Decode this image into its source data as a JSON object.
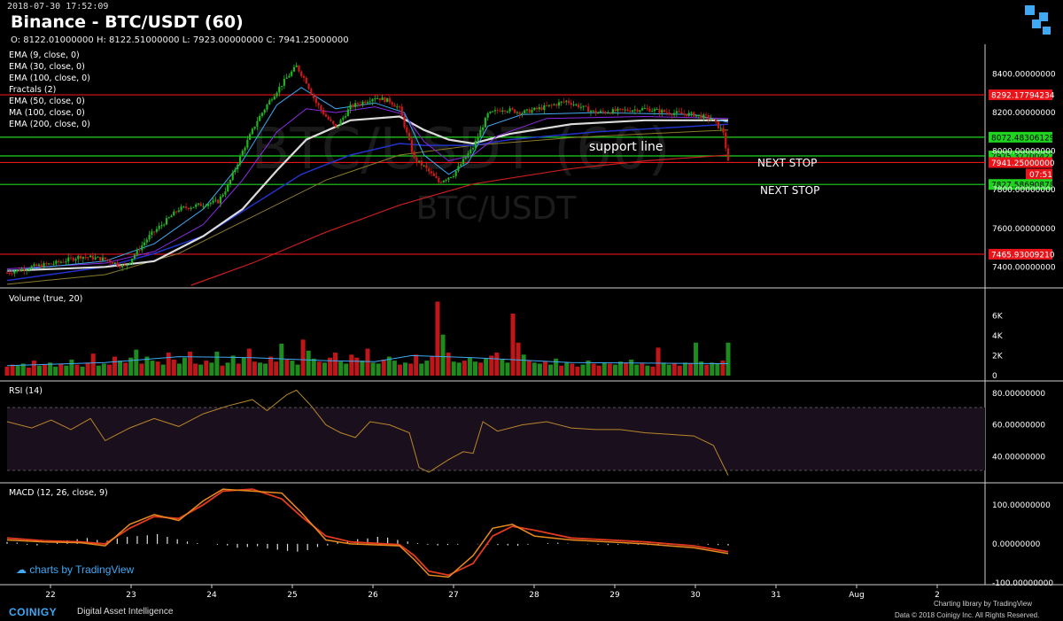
{
  "header": {
    "timestamp": "2018-07-30 17:52:09",
    "title": "Binance - BTC/USDT (60)",
    "ohlc": "O: 8122.01000000 H: 8122.51000000 L: 7923.00000000 C: 7941.25000000",
    "watermark_symbol": "BTC/USDT (60)",
    "watermark_pair": "BTC/USDT"
  },
  "studies": [
    "EMA (9, close, 0)",
    "EMA (30, close, 0)",
    "EMA (100, close, 0)",
    "Fractals (2)",
    "EMA (50, close, 0)",
    "MA (100, close, 0)",
    "EMA (200, close, 0)"
  ],
  "annotations": {
    "support": "support line",
    "next_stop_1": "NEXT STOP",
    "next_stop_2": "NEXT STOP"
  },
  "panes": {
    "volume": "Volume (true, 20)",
    "rsi": "RSI (14)",
    "macd": "MACD (12, 26, close, 9)"
  },
  "footer": {
    "tv_credit": "charts by TradingView",
    "brand": "COINIGY",
    "brand_sub": "Digital Asset Intelligence",
    "lib": "Charting library by  TradingView",
    "data": "Data © 2018  Coinigy Inc. All Rights Reserved."
  },
  "colors": {
    "up": "#1e9b1e",
    "down": "#c0161a",
    "red_line": "#e8141a",
    "green_line": "#1fd41f",
    "accent": "#3fa9f5"
  },
  "chart_data": [
    {
      "type": "candlestick",
      "pane": "price",
      "x_ticks": [
        "22",
        "23",
        "24",
        "25",
        "26",
        "27",
        "28",
        "29",
        "30",
        "31",
        "Aug",
        "2"
      ],
      "y_ticks": [
        "8400.00000000",
        "8200.00000000",
        "8000.00000000",
        "7800.00000000",
        "7600.00000000",
        "7400.00000000"
      ],
      "ylim": [
        7305,
        8545
      ],
      "close_path": [
        [
          0,
          7370
        ],
        [
          10,
          7400
        ],
        [
          20,
          7420
        ],
        [
          30,
          7455
        ],
        [
          40,
          7440
        ],
        [
          48,
          7400
        ],
        [
          58,
          7560
        ],
        [
          70,
          7700
        ],
        [
          78,
          7720
        ],
        [
          86,
          7740
        ],
        [
          90,
          7820
        ],
        [
          96,
          8000
        ],
        [
          102,
          8160
        ],
        [
          108,
          8280
        ],
        [
          114,
          8380
        ],
        [
          118,
          8440
        ],
        [
          122,
          8360
        ],
        [
          126,
          8250
        ],
        [
          130,
          8180
        ],
        [
          134,
          8120
        ],
        [
          140,
          8230
        ],
        [
          146,
          8260
        ],
        [
          150,
          8280
        ],
        [
          156,
          8260
        ],
        [
          160,
          8220
        ],
        [
          166,
          7960
        ],
        [
          170,
          7920
        ],
        [
          176,
          7840
        ],
        [
          182,
          7880
        ],
        [
          186,
          7950
        ],
        [
          190,
          8020
        ],
        [
          196,
          8190
        ],
        [
          202,
          8220
        ],
        [
          210,
          8200
        ],
        [
          220,
          8230
        ],
        [
          228,
          8260
        ],
        [
          240,
          8200
        ],
        [
          250,
          8210
        ],
        [
          260,
          8220
        ],
        [
          270,
          8200
        ],
        [
          280,
          8190
        ],
        [
          287,
          8170
        ],
        [
          292,
          8100
        ],
        [
          294,
          7941
        ]
      ],
      "ema_fast": [
        [
          0,
          7380
        ],
        [
          40,
          7430
        ],
        [
          60,
          7520
        ],
        [
          80,
          7700
        ],
        [
          96,
          7950
        ],
        [
          110,
          8240
        ],
        [
          120,
          8330
        ],
        [
          134,
          8220
        ],
        [
          150,
          8250
        ],
        [
          162,
          8200
        ],
        [
          170,
          7980
        ],
        [
          180,
          7880
        ],
        [
          188,
          7940
        ],
        [
          196,
          8130
        ],
        [
          210,
          8190
        ],
        [
          240,
          8200
        ],
        [
          280,
          8190
        ],
        [
          294,
          8150
        ]
      ],
      "ema_mid": [
        [
          0,
          7390
        ],
        [
          40,
          7420
        ],
        [
          60,
          7480
        ],
        [
          80,
          7620
        ],
        [
          96,
          7850
        ],
        [
          110,
          8100
        ],
        [
          122,
          8220
        ],
        [
          134,
          8200
        ],
        [
          150,
          8230
        ],
        [
          162,
          8190
        ],
        [
          170,
          8050
        ],
        [
          180,
          7950
        ],
        [
          190,
          7980
        ],
        [
          200,
          8080
        ],
        [
          220,
          8170
        ],
        [
          260,
          8180
        ],
        [
          294,
          8170
        ]
      ],
      "ema_slow_white": [
        [
          0,
          7380
        ],
        [
          40,
          7400
        ],
        [
          60,
          7430
        ],
        [
          80,
          7560
        ],
        [
          96,
          7700
        ],
        [
          110,
          7900
        ],
        [
          122,
          8060
        ],
        [
          140,
          8160
        ],
        [
          160,
          8180
        ],
        [
          170,
          8110
        ],
        [
          180,
          8060
        ],
        [
          190,
          8040
        ],
        [
          205,
          8090
        ],
        [
          230,
          8140
        ],
        [
          260,
          8160
        ],
        [
          294,
          8160
        ]
      ],
      "ema_50_blue": [
        [
          0,
          7330
        ],
        [
          40,
          7400
        ],
        [
          60,
          7470
        ],
        [
          80,
          7560
        ],
        [
          100,
          7720
        ],
        [
          120,
          7880
        ],
        [
          140,
          7980
        ],
        [
          160,
          8040
        ],
        [
          170,
          8030
        ],
        [
          190,
          8030
        ],
        [
          205,
          8060
        ],
        [
          240,
          8100
        ],
        [
          294,
          8140
        ]
      ],
      "ma_100_gold": [
        [
          0,
          7310
        ],
        [
          40,
          7360
        ],
        [
          70,
          7470
        ],
        [
          100,
          7660
        ],
        [
          130,
          7850
        ],
        [
          160,
          7980
        ],
        [
          190,
          8030
        ],
        [
          230,
          8070
        ],
        [
          260,
          8090
        ],
        [
          294,
          8110
        ]
      ],
      "ema_200_red": [
        [
          75,
          7305
        ],
        [
          100,
          7420
        ],
        [
          130,
          7580
        ],
        [
          160,
          7720
        ],
        [
          190,
          7830
        ],
        [
          230,
          7910
        ],
        [
          260,
          7950
        ],
        [
          294,
          7980
        ]
      ],
      "horizontal_levels": [
        {
          "value": 8292.17794234,
          "label": "8292.17794234",
          "color": "red"
        },
        {
          "value": 8072.48306129,
          "label": "8072.48306129",
          "color": "green"
        },
        {
          "value": 7975.37700422,
          "label": "7975.37700422",
          "color": "green"
        },
        {
          "value": 7941.25,
          "label": "7941.25000000",
          "color": "red",
          "timer": "07:51"
        },
        {
          "value": 7827.58690878,
          "label": "7827.58690878",
          "color": "green"
        },
        {
          "value": 7465.9300921,
          "label": "7465.93009210",
          "color": "red"
        }
      ]
    },
    {
      "type": "bar",
      "pane": "volume",
      "y_ticks": [
        "6K",
        "4K",
        "2K",
        "0"
      ],
      "ylim": [
        0,
        7000
      ],
      "values": [
        900,
        1100,
        1000,
        1200,
        800,
        1500,
        1000,
        1100,
        1300,
        900,
        1200,
        1000,
        1600,
        1100,
        900,
        1300,
        2200,
        1000,
        1200,
        1100,
        1900,
        1500,
        1300,
        1800,
        2600,
        1200,
        1900,
        1500,
        1400,
        1100,
        2300,
        1600,
        1200,
        1800,
        2400,
        1200,
        1100,
        1500,
        1300,
        2400,
        1000,
        1300,
        2000,
        1200,
        1800,
        2700,
        1400,
        1300,
        1200,
        1900,
        1400,
        3200,
        1600,
        1500,
        1100,
        3600,
        2500,
        1700,
        1400,
        1300,
        1800,
        2300,
        1400,
        1200,
        2100,
        1800,
        1500,
        2700,
        1300,
        1200,
        1600,
        1900,
        1500,
        1100,
        1300,
        1200,
        2100,
        1200,
        1500,
        1900,
        7400,
        4100,
        2300,
        1400,
        1300,
        1500,
        1800,
        1400,
        1300,
        1700,
        2000,
        2300,
        1600,
        1300,
        6200,
        3300,
        2100,
        1500,
        1300,
        1200,
        1400,
        1100,
        1700,
        1000,
        1300,
        1200,
        900,
        1100,
        1500,
        1200,
        1000,
        1300,
        1200,
        1100,
        1400,
        1300,
        1600,
        1100,
        1200,
        1000,
        900,
        2800,
        1300,
        1100,
        1200,
        1000,
        1300,
        1200,
        3300,
        1400,
        1100,
        1300,
        1200,
        1500,
        3300
      ],
      "colors": "alternating up/down as drawn",
      "ma_line": [
        [
          0,
          1000
        ],
        [
          40,
          1300
        ],
        [
          70,
          1900
        ],
        [
          100,
          1800
        ],
        [
          130,
          1500
        ],
        [
          150,
          1400
        ],
        [
          165,
          2000
        ],
        [
          190,
          1800
        ],
        [
          230,
          1300
        ],
        [
          294,
          1200
        ]
      ]
    },
    {
      "type": "line",
      "pane": "rsi",
      "y_ticks": [
        "80.00000000",
        "60.00000000",
        "40.00000000"
      ],
      "ylim": [
        25,
        85
      ],
      "bands": [
        70,
        30
      ],
      "values": [
        [
          0,
          62
        ],
        [
          10,
          58
        ],
        [
          18,
          63
        ],
        [
          26,
          57
        ],
        [
          34,
          64
        ],
        [
          40,
          50
        ],
        [
          50,
          58
        ],
        [
          60,
          64
        ],
        [
          70,
          59
        ],
        [
          80,
          67
        ],
        [
          90,
          72
        ],
        [
          100,
          76
        ],
        [
          106,
          69
        ],
        [
          114,
          79
        ],
        [
          118,
          82
        ],
        [
          124,
          72
        ],
        [
          130,
          60
        ],
        [
          136,
          55
        ],
        [
          142,
          52
        ],
        [
          148,
          62
        ],
        [
          156,
          60
        ],
        [
          164,
          55
        ],
        [
          168,
          33
        ],
        [
          172,
          30
        ],
        [
          180,
          38
        ],
        [
          186,
          43
        ],
        [
          190,
          42
        ],
        [
          194,
          62
        ],
        [
          200,
          56
        ],
        [
          210,
          60
        ],
        [
          220,
          62
        ],
        [
          230,
          58
        ],
        [
          240,
          57
        ],
        [
          250,
          57
        ],
        [
          260,
          55
        ],
        [
          270,
          54
        ],
        [
          280,
          53
        ],
        [
          288,
          47
        ],
        [
          294,
          28
        ]
      ]
    },
    {
      "type": "line",
      "pane": "macd",
      "y_ticks": [
        "100.00000000",
        "0.00000000",
        "-100.00000000"
      ],
      "ylim": [
        -100,
        145
      ],
      "macd": [
        [
          0,
          10
        ],
        [
          15,
          5
        ],
        [
          30,
          3
        ],
        [
          40,
          -5
        ],
        [
          50,
          50
        ],
        [
          60,
          75
        ],
        [
          70,
          60
        ],
        [
          80,
          110
        ],
        [
          88,
          140
        ],
        [
          100,
          135
        ],
        [
          112,
          130
        ],
        [
          120,
          80
        ],
        [
          130,
          10
        ],
        [
          140,
          0
        ],
        [
          160,
          -5
        ],
        [
          166,
          -40
        ],
        [
          172,
          -80
        ],
        [
          180,
          -85
        ],
        [
          190,
          -30
        ],
        [
          198,
          40
        ],
        [
          206,
          50
        ],
        [
          215,
          20
        ],
        [
          230,
          10
        ],
        [
          260,
          0
        ],
        [
          280,
          -10
        ],
        [
          294,
          -25
        ]
      ],
      "signal": [
        [
          0,
          15
        ],
        [
          15,
          8
        ],
        [
          30,
          5
        ],
        [
          40,
          0
        ],
        [
          50,
          40
        ],
        [
          60,
          70
        ],
        [
          70,
          65
        ],
        [
          80,
          100
        ],
        [
          88,
          135
        ],
        [
          100,
          140
        ],
        [
          112,
          115
        ],
        [
          120,
          70
        ],
        [
          130,
          20
        ],
        [
          140,
          5
        ],
        [
          160,
          -2
        ],
        [
          166,
          -30
        ],
        [
          172,
          -70
        ],
        [
          180,
          -80
        ],
        [
          190,
          -50
        ],
        [
          198,
          20
        ],
        [
          206,
          45
        ],
        [
          215,
          35
        ],
        [
          230,
          15
        ],
        [
          260,
          5
        ],
        [
          280,
          -5
        ],
        [
          294,
          -20
        ]
      ],
      "histogram": [
        5,
        3,
        -2,
        -4,
        -1,
        6,
        9,
        12,
        15,
        10,
        8,
        14,
        18,
        20,
        22,
        25,
        18,
        12,
        6,
        2,
        0,
        -2,
        -4,
        -10,
        -8,
        -6,
        -12,
        -15,
        -18,
        -20,
        -16,
        -8,
        -4,
        4,
        8,
        12,
        14,
        18,
        16,
        10,
        6,
        2,
        -2,
        -4,
        -3,
        -2,
        0,
        -1,
        -2,
        -3,
        -4,
        -5,
        -2,
        0,
        2,
        3,
        1,
        0,
        -1,
        -2,
        -3,
        -2,
        -1,
        -2,
        -3,
        -4,
        -2,
        -1,
        0,
        -1,
        -2,
        -3,
        -4
      ]
    }
  ]
}
